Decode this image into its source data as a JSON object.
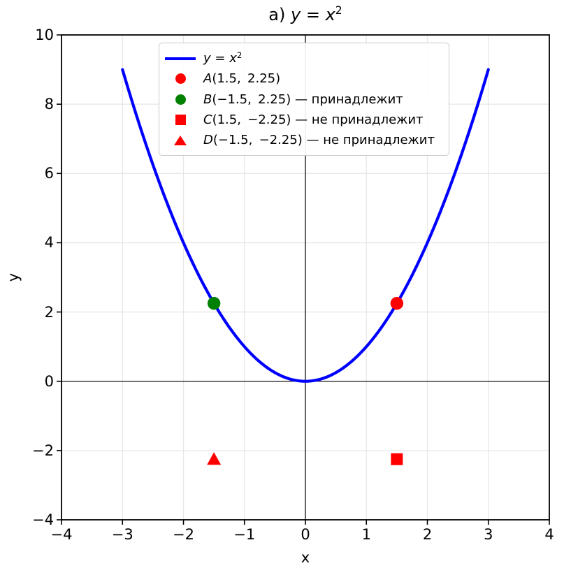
{
  "chart_data": {
    "type": "line",
    "title": "a) y = x²",
    "title_parts": [
      {
        "t": "a) "
      },
      {
        "t": "y",
        "i": true
      },
      {
        "t": " = "
      },
      {
        "t": "x",
        "i": true
      },
      {
        "t": "2",
        "sup": true
      }
    ],
    "xlabel": "x",
    "ylabel": "y",
    "xlim": [
      -4,
      4
    ],
    "ylim": [
      -4,
      10
    ],
    "xticks": [
      -4,
      -3,
      -2,
      -1,
      0,
      1,
      2,
      3,
      4
    ],
    "yticks": [
      -4,
      -2,
      0,
      2,
      4,
      6,
      8,
      10
    ],
    "grid": true,
    "axhline": 0,
    "axvline": 0,
    "series": [
      {
        "name": "y = x²",
        "type": "line",
        "color": "#0000ff",
        "x_min": -3,
        "x_max": 3,
        "formula": "x^2",
        "sample_points": [
          [
            -3,
            9
          ],
          [
            -2,
            4
          ],
          [
            -1,
            1
          ],
          [
            0,
            0
          ],
          [
            1,
            1
          ],
          [
            2,
            4
          ],
          [
            3,
            9
          ]
        ]
      }
    ],
    "points": [
      {
        "name": "A",
        "x": 1.5,
        "y": 2.25,
        "marker": "circle",
        "color": "#ff0000",
        "label": "A(1.5, 2.25)"
      },
      {
        "name": "B",
        "x": -1.5,
        "y": 2.25,
        "marker": "circle",
        "color": "#008000",
        "label": "B(−1.5, 2.25) — принадлежит"
      },
      {
        "name": "C",
        "x": 1.5,
        "y": -2.25,
        "marker": "square",
        "color": "#ff0000",
        "label": "C(1.5, −2.25) — не принадлежит"
      },
      {
        "name": "D",
        "x": -1.5,
        "y": -2.25,
        "marker": "triangle",
        "color": "#ff0000",
        "label": "D(−1.5, −2.25) — не принадлежит"
      }
    ],
    "legend": {
      "position": "upper center",
      "items": [
        {
          "marker": "line",
          "color": "#0000ff",
          "parts": [
            {
              "t": "y",
              "i": true
            },
            {
              "t": " = "
            },
            {
              "t": "x",
              "i": true
            },
            {
              "t": "2",
              "sup": true
            }
          ]
        },
        {
          "marker": "circle",
          "color": "#ff0000",
          "parts": [
            {
              "t": "A",
              "i": true
            },
            {
              "t": "(1.5,  2.25)"
            }
          ]
        },
        {
          "marker": "circle",
          "color": "#008000",
          "parts": [
            {
              "t": "B",
              "i": true
            },
            {
              "t": "(−1.5,  2.25) — принадлежит"
            }
          ]
        },
        {
          "marker": "square",
          "color": "#ff0000",
          "parts": [
            {
              "t": "C",
              "i": true
            },
            {
              "t": "(1.5,  −2.25) — не принадлежит"
            }
          ]
        },
        {
          "marker": "triangle",
          "color": "#ff0000",
          "parts": [
            {
              "t": "D",
              "i": true
            },
            {
              "t": "(−1.5,  −2.25) — не принадлежит"
            }
          ]
        }
      ]
    },
    "colors": {
      "curve": "#0000ff",
      "grid": "#e7e7e7",
      "axis": "#000000",
      "background": "#ffffff",
      "legend_border": "#cbcbcb"
    }
  }
}
